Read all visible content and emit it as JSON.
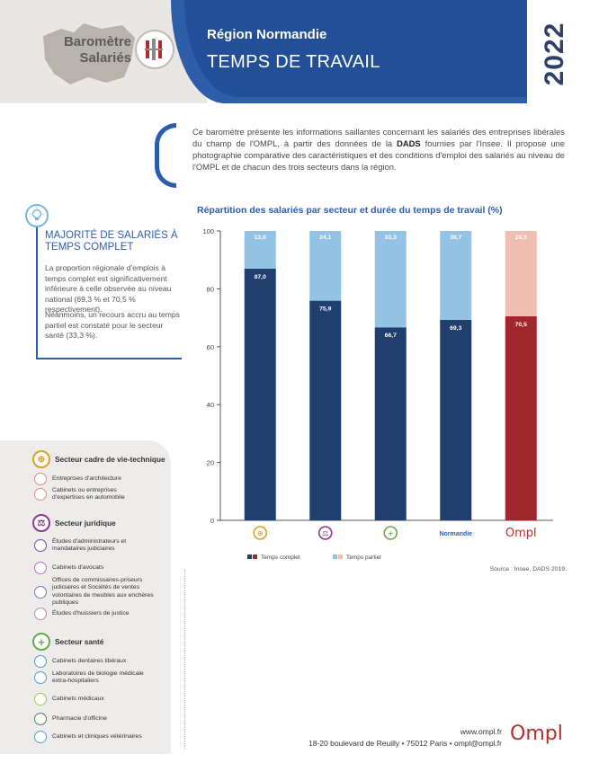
{
  "header": {
    "badge_line1": "Baromètre",
    "badge_line2": "Salariés",
    "region": "Région Normandie",
    "title": "TEMPS DE TRAVAIL",
    "year": "2022",
    "colors": {
      "blue": "#2f5ea8",
      "dark_blue": "#224f97",
      "grey": "#e9e7e5"
    }
  },
  "intro": {
    "text_before": "Ce baromètre présente les informations saillantes concernant les salariés des entreprises libérales du champ de l'OMPL, à partir des données de la ",
    "text_bold": "DADS",
    "text_after": " fournies par l'Insee. Il propose une photographie comparative des caractéristiques et des conditions d'emploi des salariés au niveau de l'OMPL et de chacun des trois secteurs dans la région."
  },
  "info_box": {
    "icon": "lightbulb-icon",
    "title": "MAJORITÉ DE SALARIÉS À TEMPS COMPLET",
    "paragraph1": "La proportion régionale d'emplois à temps complet est significativement inférieure à celle observée au niveau national (69,3 % et 70,5 % respectivement).",
    "paragraph2": "Néanmoins, un recours accru au temps partiel est constaté pour le secteur santé (33,3 %)."
  },
  "sectors": [
    {
      "name": "Secteur cadre de vie-technique",
      "icon": "compass-icon",
      "color": "#e0a020",
      "items": [
        {
          "label": "Entreprises d'architecture",
          "icon": "building-icon"
        },
        {
          "label": "Cabinets ou entreprises d'expertises en automobile",
          "icon": "car-icon"
        }
      ]
    },
    {
      "name": "Secteur juridique",
      "icon": "scales-icon",
      "color": "#8b3a8f",
      "items": [
        {
          "label": "Études d'administrateurs et mandataires judiciaires",
          "icon": "bank-icon"
        },
        {
          "label": "Cabinets d'avocats",
          "icon": "lawyer-icon"
        },
        {
          "label": "Offices de commissaires-priseurs judiciaires et Sociétés de ventes volontaires de meubles aux enchères publiques",
          "icon": "gavel-icon"
        },
        {
          "label": "Études d'huissiers de justice",
          "icon": "seal-icon"
        }
      ]
    },
    {
      "name": "Secteur santé",
      "icon": "cross-icon",
      "color": "#6aa84f",
      "items": [
        {
          "label": "Cabinets dentaires libéraux",
          "icon": "tooth-icon"
        },
        {
          "label": "Laboratoires de biologie médicale extra-hospitaliers",
          "icon": "flask-icon"
        },
        {
          "label": "Cabinets médicaux",
          "icon": "stethoscope-icon"
        },
        {
          "label": "Pharmacie d'officine",
          "icon": "pills-icon"
        },
        {
          "label": "Cabinets et cliniques vétérinaires",
          "icon": "paw-icon"
        }
      ]
    }
  ],
  "chart_data": {
    "type": "bar",
    "stacked": true,
    "title": "Répartition des salariés par secteur et durée du temps de travail (%)",
    "categories": [
      "",
      "",
      "",
      "Normandie",
      ""
    ],
    "category_icons": [
      "compass-icon",
      "scales-icon",
      "cross-icon",
      "",
      "ompl-logo"
    ],
    "category_icon_colors": [
      "#e0a020",
      "#8b3a8f",
      "#6aa84f",
      "",
      "#b32d2e"
    ],
    "category_text_color": [
      "",
      "",
      "",
      "#2f5ea8",
      "#b32d2e"
    ],
    "ompl_label": "Ompl",
    "series": [
      {
        "name": "Temps complet",
        "values": [
          87.0,
          75.9,
          66.7,
          69.3,
          70.5
        ],
        "labels": [
          "87,0",
          "75,9",
          "66,7",
          "69,3",
          "70,5"
        ]
      },
      {
        "name": "Temps partiel",
        "values": [
          13.0,
          24.1,
          33.3,
          30.7,
          29.5
        ],
        "labels": [
          "13,0",
          "24,1",
          "33,3",
          "30,7",
          "29,5"
        ]
      }
    ],
    "colors": {
      "full_region": "#213f6e",
      "part_region": "#93c3e4",
      "full_national": "#a0272b",
      "part_national": "#f1bfb1"
    },
    "ylim": [
      0,
      100
    ],
    "yticks": [
      0,
      20,
      40,
      60,
      80,
      100
    ],
    "legend_position": "bottom-left",
    "source": "Source : Insee, DADS 2019."
  },
  "footer": {
    "website": "www.ompl.fr",
    "address": "18-20 boulevard de Reuilly",
    "city": "75012 Paris",
    "email": "ompl@ompl.fr",
    "logo": "Ompl"
  }
}
